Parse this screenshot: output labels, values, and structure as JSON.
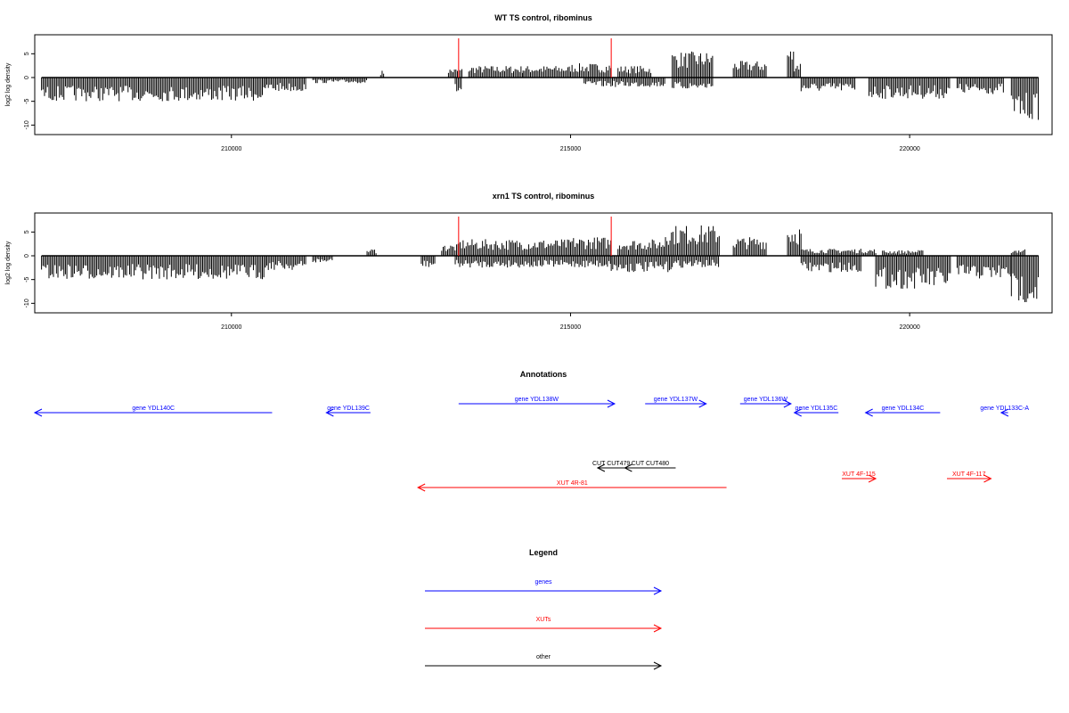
{
  "colors": {
    "gene": "#0000ff",
    "xut": "#ff0000",
    "other": "#000000",
    "cut_marker": "#ff0000"
  },
  "chart_data": [
    {
      "type": "bar",
      "title": "WT TS control, ribominus",
      "ylabel": "log2 log density",
      "xlim": [
        207100,
        222100
      ],
      "ylim": [
        -12,
        9
      ],
      "yticks": [
        -10,
        -5,
        0,
        5
      ],
      "xticks": [
        210000,
        215000,
        220000
      ],
      "marker_lines": [
        213350,
        215600
      ],
      "profile": {
        "note_hidden": "",
        "plus_regions": [
          {
            "start": 212200,
            "end": 212250,
            "value": 1.5
          },
          {
            "start": 213200,
            "end": 213400,
            "value": 2.0
          },
          {
            "start": 213500,
            "end": 214300,
            "value": 2.5
          },
          {
            "start": 214300,
            "end": 215000,
            "value": 2.5
          },
          {
            "start": 215000,
            "end": 215600,
            "value": 3.0
          },
          {
            "start": 215700,
            "end": 216200,
            "value": 2.5
          },
          {
            "start": 216500,
            "end": 217100,
            "value": 5.5
          },
          {
            "start": 217400,
            "end": 217900,
            "value": 3.5
          },
          {
            "start": 218200,
            "end": 218300,
            "value": 6.5
          },
          {
            "start": 218300,
            "end": 218400,
            "value": 3.5
          }
        ],
        "minus_regions": [
          {
            "start": 207200,
            "end": 210500,
            "value": -5.0
          },
          {
            "start": 210500,
            "end": 211100,
            "value": -3.0
          },
          {
            "start": 211200,
            "end": 212000,
            "value": -1.2
          },
          {
            "start": 213300,
            "end": 213400,
            "value": -3.5
          },
          {
            "start": 215200,
            "end": 216400,
            "value": -2.0
          },
          {
            "start": 216500,
            "end": 217100,
            "value": -2.5
          },
          {
            "start": 218400,
            "end": 219200,
            "value": -3.0
          },
          {
            "start": 219400,
            "end": 220600,
            "value": -4.5
          },
          {
            "start": 220700,
            "end": 221400,
            "value": -3.5
          },
          {
            "start": 221500,
            "end": 221900,
            "value": -9.0
          }
        ]
      }
    },
    {
      "type": "bar",
      "title": "xrn1 TS control, ribominus",
      "ylabel": "log2 log density",
      "xlim": [
        207100,
        222100
      ],
      "ylim": [
        -12,
        9
      ],
      "yticks": [
        -10,
        -5,
        0,
        5
      ],
      "xticks": [
        210000,
        215000,
        220000
      ],
      "marker_lines": [
        213350,
        215600
      ],
      "profile": {
        "plus_regions": [
          {
            "start": 212000,
            "end": 212150,
            "value": 1.5
          },
          {
            "start": 213100,
            "end": 213350,
            "value": 2.5
          },
          {
            "start": 213350,
            "end": 215000,
            "value": 3.5
          },
          {
            "start": 215000,
            "end": 215600,
            "value": 4.0
          },
          {
            "start": 215700,
            "end": 216400,
            "value": 3.5
          },
          {
            "start": 216400,
            "end": 217200,
            "value": 6.5
          },
          {
            "start": 217400,
            "end": 217900,
            "value": 4.0
          },
          {
            "start": 218200,
            "end": 218400,
            "value": 6.5
          },
          {
            "start": 218400,
            "end": 219500,
            "value": 1.5
          },
          {
            "start": 219600,
            "end": 220200,
            "value": 1.2
          },
          {
            "start": 221500,
            "end": 221700,
            "value": 1.5
          }
        ],
        "minus_regions": [
          {
            "start": 207200,
            "end": 210500,
            "value": -5.0
          },
          {
            "start": 210500,
            "end": 211100,
            "value": -3.0
          },
          {
            "start": 211200,
            "end": 211500,
            "value": -1.5
          },
          {
            "start": 212800,
            "end": 213000,
            "value": -2.5
          },
          {
            "start": 213300,
            "end": 215600,
            "value": -2.5
          },
          {
            "start": 215600,
            "end": 216500,
            "value": -3.5
          },
          {
            "start": 216500,
            "end": 217200,
            "value": -2.5
          },
          {
            "start": 218400,
            "end": 219300,
            "value": -3.5
          },
          {
            "start": 219500,
            "end": 220600,
            "value": -7.0
          },
          {
            "start": 220700,
            "end": 221500,
            "value": -5.0
          },
          {
            "start": 221500,
            "end": 221900,
            "value": -10.0
          }
        ]
      }
    }
  ],
  "annotations": {
    "title": "Annotations",
    "items": [
      {
        "label": "gene YDL140C",
        "kind": "gene",
        "start": 207100,
        "end": 210600,
        "strand": "-",
        "row": 0
      },
      {
        "label": "gene YDL139C",
        "kind": "gene",
        "start": 211400,
        "end": 212050,
        "strand": "-",
        "row": 0
      },
      {
        "label": "gene YDL138W",
        "kind": "gene",
        "start": 213350,
        "end": 215650,
        "strand": "+",
        "row": 1
      },
      {
        "label": "gene YDL137W",
        "kind": "gene",
        "start": 216100,
        "end": 217000,
        "strand": "+",
        "row": 1
      },
      {
        "label": "gene YDL136W",
        "kind": "gene",
        "start": 217500,
        "end": 218250,
        "strand": "+",
        "row": 1
      },
      {
        "label": "gene YDL135C",
        "kind": "gene",
        "start": 218300,
        "end": 218950,
        "strand": "-",
        "row": 0
      },
      {
        "label": "gene YDL134C",
        "kind": "gene",
        "start": 219350,
        "end": 220450,
        "strand": "-",
        "row": 0
      },
      {
        "label": "gene YDL133C-A",
        "kind": "gene",
        "start": 221350,
        "end": 221450,
        "strand": "-",
        "row": 0
      },
      {
        "label": "CUT CUT479",
        "kind": "other",
        "start": 215400,
        "end": 215800,
        "strand": "-",
        "row": 2
      },
      {
        "label": "CUT CUT480",
        "kind": "other",
        "start": 215800,
        "end": 216550,
        "strand": "-",
        "row": 2
      },
      {
        "label": "XUT 4R-81",
        "kind": "xut",
        "start": 212750,
        "end": 217300,
        "strand": "-",
        "row": 4
      },
      {
        "label": "XUT 4F-115",
        "kind": "xut",
        "start": 219000,
        "end": 219500,
        "strand": "+",
        "row": 3
      },
      {
        "label": "XUT 4F-117",
        "kind": "xut",
        "start": 220550,
        "end": 221200,
        "strand": "+",
        "row": 3
      }
    ]
  },
  "legend": {
    "title": "Legend",
    "items": [
      {
        "label": "genes",
        "kind": "gene"
      },
      {
        "label": "XUTs",
        "kind": "xut"
      },
      {
        "label": "other",
        "kind": "other"
      }
    ]
  }
}
